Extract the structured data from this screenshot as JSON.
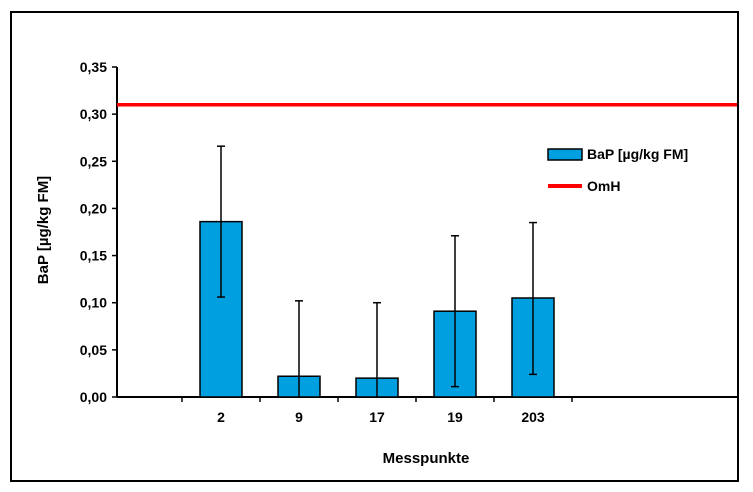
{
  "chart_data": {
    "type": "bar",
    "title": "",
    "xlabel": "Messpunkte",
    "ylabel": "BaP [µg/kg FM]",
    "ylim": [
      0,
      0.35
    ],
    "yticks": [
      "0,00",
      "0,05",
      "0,10",
      "0,15",
      "0,20",
      "0,25",
      "0,30",
      "0,35"
    ],
    "categories": [
      "2",
      "9",
      "17",
      "19",
      "203"
    ],
    "series": [
      {
        "name": "BaP [µg/kg FM]",
        "values": [
          0.186,
          0.022,
          0.02,
          0.091,
          0.105
        ],
        "err_low": [
          0.106,
          0.0,
          0.0,
          0.011,
          0.024
        ],
        "err_high": [
          0.266,
          0.102,
          0.1,
          0.171,
          0.185
        ],
        "color": "#00a0e0"
      }
    ],
    "reference_lines": [
      {
        "name": "OmH",
        "value": 0.31,
        "color": "#ff0000"
      }
    ],
    "legend": {
      "placement": "right",
      "items": [
        {
          "label": "BaP [µg/kg FM]",
          "kind": "bar",
          "color": "#00a0e0"
        },
        {
          "label": "OmH",
          "kind": "line",
          "color": "#ff0000"
        }
      ]
    },
    "grid": false
  }
}
